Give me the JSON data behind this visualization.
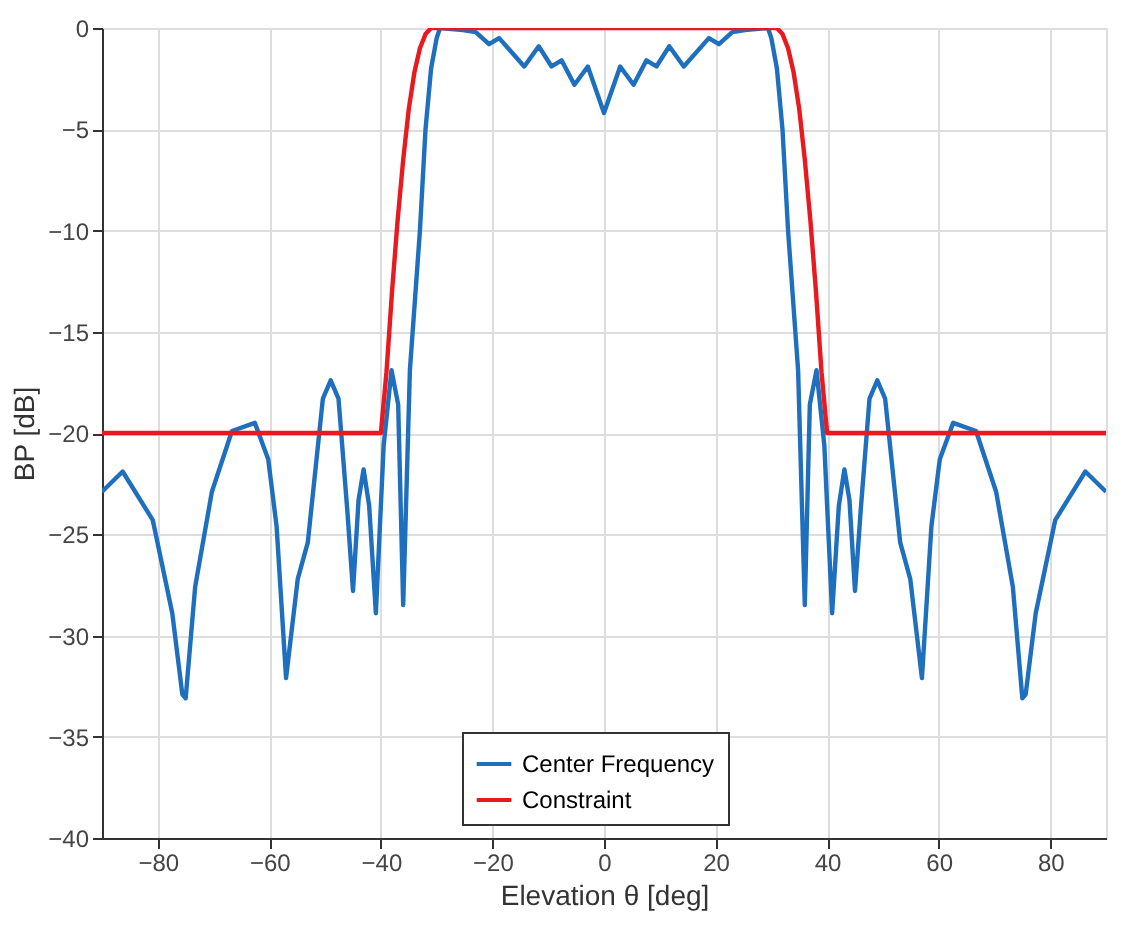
{
  "chart_data": {
    "type": "line",
    "xlabel": "Elevation θ [deg]",
    "ylabel": "BP [dB]",
    "xlim": [
      -90,
      90
    ],
    "ylim": [
      -40,
      0
    ],
    "xticks": [
      -80,
      -60,
      -40,
      -20,
      0,
      20,
      40,
      60,
      80
    ],
    "yticks": [
      -40,
      -35,
      -30,
      -25,
      -20,
      -15,
      -10,
      -5,
      0
    ],
    "grid": true,
    "legend": "bottom",
    "marker": "none",
    "line_style": "solid",
    "series": [
      {
        "name": "Center Frequency",
        "color": "#1f6fbf",
        "x": [
          -90,
          -86.3,
          -80.9,
          -77.4,
          -75.6,
          -75,
          -73.3,
          -70.3,
          -66.7,
          -62.6,
          -60.2,
          -58.7,
          -57,
          -54.9,
          -53.1,
          -50.4,
          -49,
          -47.6,
          -46,
          -45,
          -44,
          -43.1,
          -42.1,
          -40.9,
          -39.5,
          -38.1,
          -36.9,
          -36,
          -34.8,
          -33,
          -32,
          -31,
          -30,
          -29.4,
          -25.3,
          -23,
          -20.6,
          -18.8,
          -14.3,
          -11.7,
          -9.4,
          -7.6,
          -5.3,
          -2.9,
          0,
          2.9,
          5.3,
          7.6,
          9.4,
          11.7,
          14.3,
          18.8,
          20.6,
          23,
          25.3,
          29.4,
          30,
          31,
          32,
          33,
          34.8,
          36,
          36.9,
          38.1,
          39.5,
          40.9,
          42.1,
          43.1,
          44,
          45,
          46,
          47.6,
          49,
          50.4,
          53.1,
          54.9,
          57,
          58.7,
          60.2,
          62.6,
          66.7,
          70.3,
          73.3,
          75,
          75.6,
          77.4,
          80.9,
          86.3,
          90
        ],
        "values": [
          -22.9,
          -21.9,
          -24.3,
          -28.9,
          -32.9,
          -33.1,
          -27.6,
          -22.9,
          -19.9,
          -19.5,
          -21.3,
          -24.6,
          -32.1,
          -27.2,
          -25.4,
          -18.3,
          -17.4,
          -18.3,
          -23.9,
          -27.8,
          -23.3,
          -21.8,
          -23.6,
          -28.9,
          -20.6,
          -16.9,
          -18.6,
          -28.5,
          -16.9,
          -10,
          -5,
          -2,
          -0.5,
          0,
          -0.1,
          -0.2,
          -0.8,
          -0.5,
          -1.9,
          -0.9,
          -1.9,
          -1.6,
          -2.8,
          -1.9,
          -4.2,
          -1.9,
          -2.8,
          -1.6,
          -1.9,
          -0.9,
          -1.9,
          -0.5,
          -0.8,
          -0.2,
          -0.1,
          0,
          -0.5,
          -2,
          -5,
          -10,
          -16.9,
          -28.5,
          -18.6,
          -16.9,
          -20.6,
          -28.9,
          -23.6,
          -21.8,
          -23.3,
          -27.8,
          -23.9,
          -18.3,
          -17.4,
          -18.3,
          -25.4,
          -27.2,
          -32.1,
          -24.6,
          -21.3,
          -19.5,
          -19.9,
          -22.9,
          -27.6,
          -33.1,
          -32.9,
          -28.9,
          -24.3,
          -21.9,
          -22.9
        ]
      },
      {
        "name": "Constraint",
        "color": "#e8191f",
        "x": [
          -90,
          -40,
          -39,
          -38,
          -37,
          -36,
          -35,
          -34,
          -33,
          -32,
          -31,
          -30,
          30,
          31,
          32,
          33,
          34,
          35,
          36,
          37,
          38,
          39,
          40,
          90
        ],
        "values": [
          -20,
          -20,
          -17,
          -13,
          -9.5,
          -6.5,
          -4,
          -2.2,
          -1,
          -0.3,
          0,
          0,
          0,
          0,
          -0.3,
          -1,
          -2.2,
          -4,
          -6.5,
          -9.5,
          -13,
          -17,
          -20,
          -20
        ]
      }
    ]
  }
}
